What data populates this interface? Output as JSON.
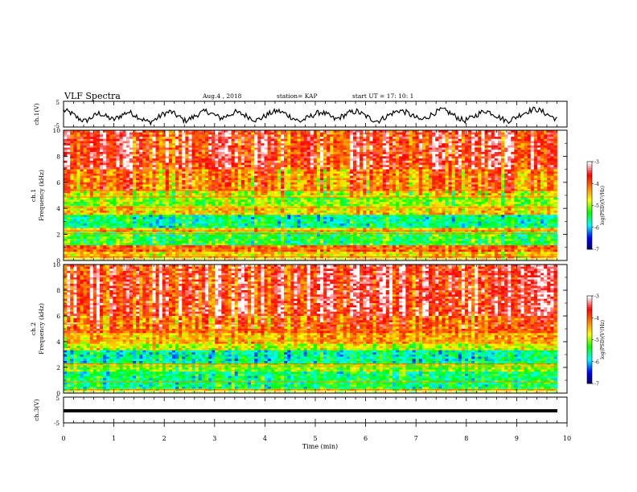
{
  "header": {
    "title": "VLF Spectra",
    "date": "Aug.4 , 2018",
    "station": "station= KAP",
    "start": "start UT = 17: 10: 1"
  },
  "chart_data": [
    {
      "type": "line",
      "ylabel": "ch.1(V)",
      "ylim": [
        -5,
        5
      ],
      "yticks": [
        "5",
        "-5"
      ],
      "x_range_min": [
        0,
        9.8
      ],
      "values_sampled": [
        1.5,
        0.5,
        -1.5,
        -2.8,
        -1.2,
        0.4,
        -1.0,
        -2.2,
        -0.6,
        0.9,
        -0.3,
        -2.0,
        -3.2,
        -1.8,
        0.2,
        1.0,
        -0.8,
        -2.6,
        -1.4,
        0.3,
        1.2,
        -0.2,
        -1.6,
        -0.5,
        0.8,
        0.0,
        -1.2,
        -2.4,
        -1.0,
        0.5,
        1.3,
        0.2,
        -1.4,
        -2.9,
        -1.6,
        -0.2,
        0.9,
        -0.4,
        -2.1,
        -0.8,
        0.6,
        1.1,
        -0.3,
        -1.9,
        -2.7,
        -1.1,
        0.4,
        1.5,
        0.6,
        -1.0,
        -2.3,
        -0.9,
        0.7,
        1.8,
        0.5,
        -1.2,
        -2.6,
        -1.5,
        0.1,
        1.4,
        0.3,
        -1.3,
        -2.8,
        -1.6,
        0.0,
        1.2,
        2.0,
        0.9,
        -0.6,
        -2.0
      ]
    },
    {
      "type": "heatmap",
      "ylabel": "ch.1\nFrequency (kHz)",
      "ylim": [
        0,
        10
      ],
      "yticks": [
        "0",
        "2",
        "4",
        "6",
        "8",
        "10"
      ],
      "colorbar": {
        "label": "log(PSD)(V²/Hz)",
        "ticks": [
          "-3",
          "-4",
          "-5",
          "-6",
          "-7"
        ],
        "range": [
          -7,
          -3
        ]
      }
    },
    {
      "type": "heatmap",
      "ylabel": "ch.2\nFrequency (kHz)",
      "ylim": [
        0,
        10
      ],
      "yticks": [
        "0",
        "2",
        "4",
        "6",
        "8",
        "10"
      ],
      "colorbar": {
        "label": "log(PSD)(V²/Hz)",
        "ticks": [
          "-3",
          "-4",
          "-5",
          "-6",
          "-7"
        ],
        "range": [
          -7,
          -3
        ]
      }
    },
    {
      "type": "line",
      "ylabel": "ch.3(V)",
      "ylim": [
        -5,
        5
      ],
      "yticks": [
        "5",
        "-5"
      ],
      "constant_value": 0
    }
  ],
  "xaxis": {
    "label": "Time (min)",
    "ticks": [
      "0",
      "1",
      "2",
      "3",
      "4",
      "5",
      "6",
      "7",
      "8",
      "9",
      "10"
    ],
    "range": [
      0,
      10
    ]
  },
  "colormap": [
    "#000060",
    "#0000ff",
    "#00ffff",
    "#00ff00",
    "#ffff00",
    "#ff8000",
    "#ff0000",
    "#ffffff"
  ]
}
